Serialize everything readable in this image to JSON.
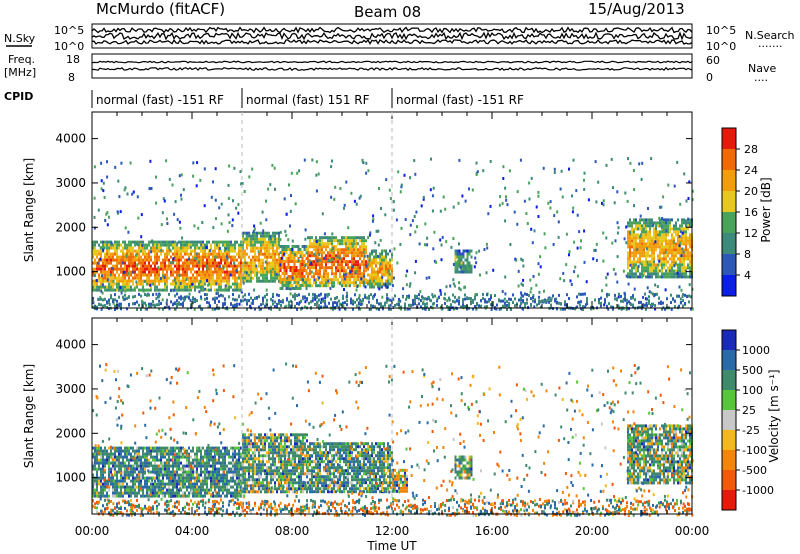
{
  "header": {
    "station": "McMurdo (fitACF)",
    "beam": "Beam 08",
    "date": "15/Aug/2013"
  },
  "noise_panel": {
    "left_label": "N.Sky",
    "right_label": "N.Search",
    "y_ticks_left": [
      "10^5",
      "10^0"
    ],
    "y_ticks_right": [
      "10^5",
      "10^0"
    ],
    "right_dots": "·······"
  },
  "freq_panel": {
    "left_label_1": "Freq.",
    "left_label_2": "[MHz]",
    "right_label": "Nave",
    "y_ticks_left": [
      "18",
      "8"
    ],
    "y_ticks_right": [
      "60",
      "0"
    ],
    "right_dots": "····"
  },
  "cpid": {
    "label": "CPID",
    "segments": [
      {
        "text": "normal (fast) -151 RF",
        "start_hour": 0,
        "end_hour": 6
      },
      {
        "text": "normal (fast) 151 RF",
        "start_hour": 6,
        "end_hour": 12
      },
      {
        "text": "normal (fast) -151 RF",
        "start_hour": 12,
        "end_hour": 24
      }
    ]
  },
  "axes": {
    "x_label": "Time UT",
    "x_ticks": [
      "00:00",
      "04:00",
      "08:00",
      "12:00",
      "16:00",
      "20:00",
      "00:00"
    ],
    "y_label": "Slant Range [km]",
    "y_ticks": [
      "1000",
      "2000",
      "3000",
      "4000"
    ]
  },
  "colorbars": {
    "power": {
      "label": "Power [dB]",
      "ticks": [
        "4",
        "8",
        "12",
        "16",
        "20",
        "24",
        "28"
      ],
      "colors": [
        "#0a1ee6",
        "#2e58b8",
        "#3e8a7a",
        "#4aa35a",
        "#e6c81e",
        "#f29e0c",
        "#f06a08",
        "#e61a0a"
      ]
    },
    "velocity": {
      "label": "Velocity [m s⁻¹]",
      "ticks": [
        "1000",
        "500",
        "100",
        "25",
        "-25",
        "-100",
        "-500",
        "-1000"
      ],
      "colors": [
        "#1a2ab8",
        "#2a6aa8",
        "#3e8a6a",
        "#58c63a",
        "#c8c8c8",
        "#f2b81e",
        "#f2860c",
        "#f05a0a",
        "#e61a0a"
      ]
    }
  },
  "chart_data": {
    "type": "heatmap",
    "x_range_hours": [
      0,
      24
    ],
    "y_range_km": [
      180,
      4600
    ],
    "power_panel": {
      "scatter_regions": [
        {
          "t0": 0.0,
          "t1": 6.0,
          "r0": 600,
          "r1": 1700,
          "value_db": 26
        },
        {
          "t0": 6.0,
          "t1": 7.5,
          "r0": 750,
          "r1": 1900,
          "value_db": 22
        },
        {
          "t0": 7.5,
          "t1": 8.6,
          "r0": 650,
          "r1": 1600,
          "value_db": 26
        },
        {
          "t0": 8.6,
          "t1": 11.0,
          "r0": 650,
          "r1": 1800,
          "value_db": 27
        },
        {
          "t0": 11.0,
          "t1": 12.0,
          "r0": 650,
          "r1": 1500,
          "value_db": 22
        },
        {
          "t0": 14.5,
          "t1": 15.2,
          "r0": 1000,
          "r1": 1500,
          "value_db": 14
        },
        {
          "t0": 21.4,
          "t1": 24.0,
          "r0": 900,
          "r1": 2200,
          "value_db": 22
        }
      ]
    },
    "velocity_panel": {
      "scatter_regions": [
        {
          "t0": 0.0,
          "t1": 6.0,
          "r0": 600,
          "r1": 1700,
          "value_ms": 300
        },
        {
          "t0": 6.0,
          "t1": 8.6,
          "r0": 700,
          "r1": 2000,
          "value_ms": 200
        },
        {
          "t0": 8.6,
          "t1": 12.0,
          "r0": 650,
          "r1": 1800,
          "value_ms": 250
        },
        {
          "t0": 12.0,
          "t1": 12.6,
          "r0": 700,
          "r1": 1200,
          "value_ms": -150
        },
        {
          "t0": 14.5,
          "t1": 15.2,
          "r0": 1000,
          "r1": 1500,
          "value_ms": 200
        },
        {
          "t0": 21.4,
          "t1": 24.0,
          "r0": 900,
          "r1": 2200,
          "value_ms": 150
        }
      ]
    }
  }
}
